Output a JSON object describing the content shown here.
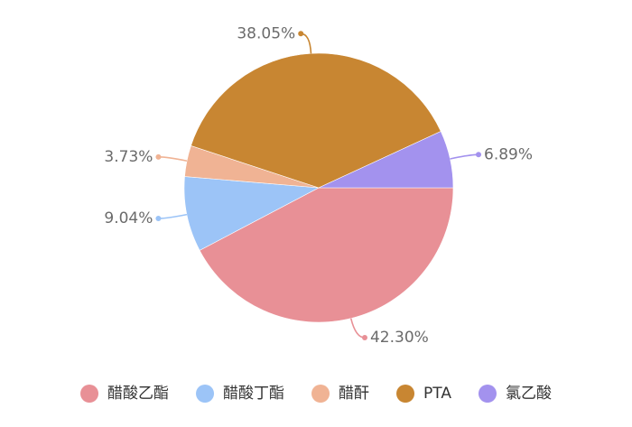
{
  "chart_data": {
    "type": "pie",
    "slices": [
      {
        "name": "醋酸乙酯",
        "value": 42.3,
        "label": "42.30%",
        "color": "#e89096"
      },
      {
        "name": "醋酸丁酯",
        "value": 9.04,
        "label": "9.04%",
        "color": "#9cc4f7"
      },
      {
        "name": "醋酐",
        "value": 3.73,
        "label": "3.73%",
        "color": "#f0b394"
      },
      {
        "name": "PTA",
        "value": 38.05,
        "label": "38.05%",
        "color": "#c88632"
      },
      {
        "name": "氯乙酸",
        "value": 6.89,
        "label": "6.89%",
        "color": "#a392ee"
      }
    ],
    "legend_position": "bottom",
    "start_angle_deg": 0,
    "direction": "clockwise"
  }
}
